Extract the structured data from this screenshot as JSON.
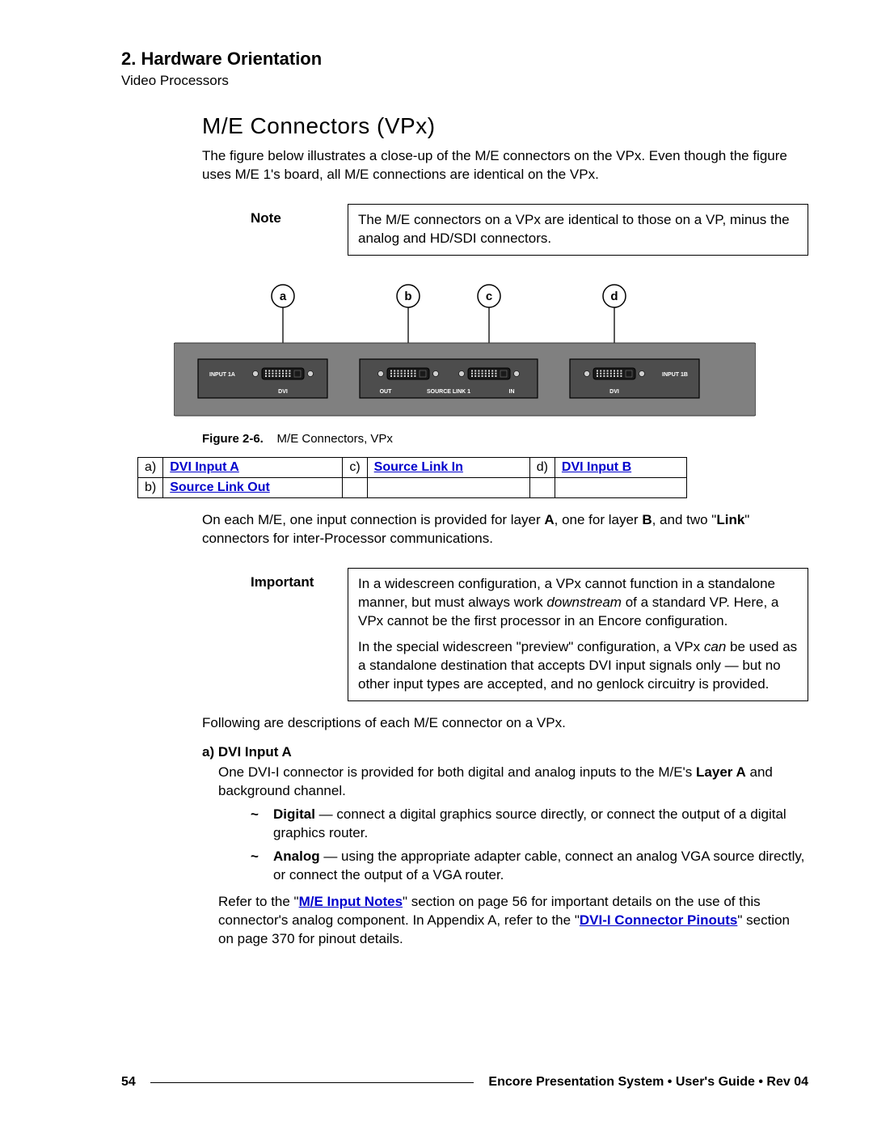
{
  "header": {
    "chapter": "2.  Hardware Orientation",
    "breadcrumb": "Video Processors"
  },
  "section_title": "M/E Connectors (VPx)",
  "intro": "The figure below illustrates a close-up of the M/E connectors on the VPx.  Even though the figure uses M/E 1's board, all M/E connections are identical on the VPx.",
  "note": {
    "label": "Note",
    "text": "The M/E connectors on a VPx are identical to those on a VP, minus the analog and HD/SDI connectors."
  },
  "figure": {
    "labels": {
      "a": "a",
      "b": "b",
      "c": "c",
      "d": "d"
    },
    "panel": {
      "input1a": "INPUT 1A",
      "input1b": "INPUT 1B",
      "dvi_left": "DVI",
      "dvi_right": "DVI",
      "out": "OUT",
      "source_link": "SOURCE LINK 1",
      "in": "IN"
    },
    "colors": {
      "panel_bg": "#808080",
      "panel_border": "#333333",
      "conn_box": "#4d4d4d",
      "conn_border": "#222222",
      "screw": "#cfcfcf"
    },
    "caption_label": "Figure 2-6.",
    "caption_text": "M/E Connectors, VPx"
  },
  "ref_table": {
    "rows": [
      [
        {
          "k": "a)",
          "v": "DVI Input A"
        },
        {
          "k": "c)",
          "v": "Source Link In"
        },
        {
          "k": "d)",
          "v": "DVI Input B"
        }
      ],
      [
        {
          "k": "b)",
          "v": "Source Link Out"
        },
        {
          "k": "",
          "v": ""
        },
        {
          "k": "",
          "v": ""
        }
      ]
    ]
  },
  "body1_pre": "On each M/E, one input connection is provided for layer ",
  "body1_A": "A",
  "body1_mid": ", one for layer ",
  "body1_B": "B",
  "body1_post1": ", and two \"",
  "body1_link": "Link",
  "body1_post2": "\" connectors for inter-Processor communications.",
  "important": {
    "label": "Important",
    "p1_pre": "In a widescreen configuration, a VPx cannot function in a standalone manner, but must always work ",
    "p1_em": "downstream",
    "p1_post": " of a standard VP.  Here, a VPx cannot be the first processor in an Encore configuration.",
    "p2_pre": "In the special widescreen \"preview\" configuration, a VPx ",
    "p2_em": "can",
    "p2_post": " be used as a standalone destination that accepts DVI input signals only — but no other input types are accepted, and no genlock circuitry is provided."
  },
  "body2": "Following are descriptions of each M/E connector on a VPx.",
  "dvi_a": {
    "hdr": "a)   DVI Input A",
    "p1_pre": "One DVI-I connector is provided for both digital and analog inputs to the M/E's ",
    "p1_b": "Layer A",
    "p1_post": " and background channel.",
    "i1_b": "Digital",
    "i1_rest": " — connect a digital graphics source directly, or connect the output of a digital graphics router.",
    "i2_b": "Analog",
    "i2_rest": " — using the appropriate adapter cable, connect an analog VGA source directly, or connect the output of a VGA router.",
    "p2_pre": "Refer to the \"",
    "p2_link1": "M/E Input Notes",
    "p2_mid1": "\" section on page 56 for important details on the use of this connector's analog component.  In Appendix A, refer to the \"",
    "p2_link2": "DVI-I Connector Pinouts",
    "p2_mid2": "\" section on page 370 for pinout details."
  },
  "footer": {
    "page": "54",
    "text": "Encore Presentation System  •  User's Guide  •  Rev 04"
  }
}
